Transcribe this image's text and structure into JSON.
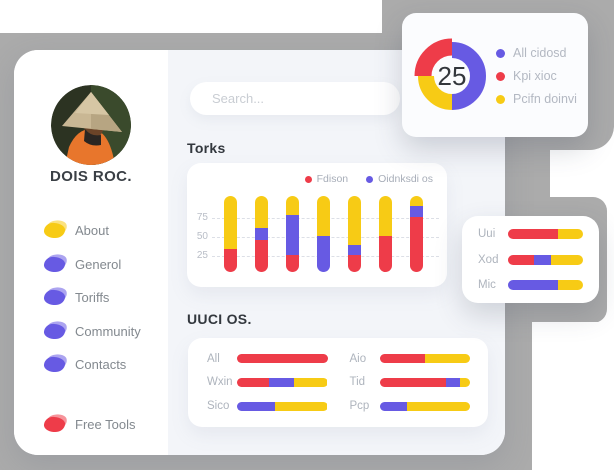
{
  "colors": {
    "red": "#ee3c49",
    "yellow": "#f7cb15",
    "purple": "#675ae3",
    "gray_bg": "#ababab",
    "content_bg": "#f3f5f9"
  },
  "profile": {
    "name": "DOIS ROC."
  },
  "search": {
    "placeholder": "Search..."
  },
  "sidebar": {
    "menu": [
      {
        "label": "About",
        "color": "#f7cb15"
      },
      {
        "label": "Generol",
        "color": "#675ae3"
      },
      {
        "label": "Toriffs",
        "color": "#675ae3"
      },
      {
        "label": "Community",
        "color": "#675ae3"
      },
      {
        "label": "Contacts",
        "color": "#675ae3"
      }
    ],
    "tools_item": {
      "label": "Free Tools",
      "color": "#ee3c49"
    }
  },
  "donut_card": {
    "center_value": "25",
    "type": "donut",
    "segments": [
      {
        "label": "All cidosd",
        "color": "#675ae3",
        "percent": 50,
        "exploded": false
      },
      {
        "label": "Pcifn doinvi",
        "color": "#f7cb15",
        "percent": 25,
        "exploded": false
      },
      {
        "label": "Kpi xioc",
        "color": "#ee3c49",
        "percent": 25,
        "exploded": true
      }
    ],
    "legend": [
      {
        "label": "All cidosd",
        "color": "#675ae3"
      },
      {
        "label": "Kpi xioc",
        "color": "#ee3c49"
      },
      {
        "label": "Pcifn doinvi",
        "color": "#f7cb15"
      }
    ]
  },
  "torks": {
    "title": "Torks",
    "type": "stacked-bar",
    "legend": [
      {
        "label": "Fdison",
        "color": "#ee3c49"
      },
      {
        "label": "Oidnksdi os",
        "color": "#675ae3"
      }
    ],
    "y_ticks": [
      75,
      50,
      25
    ],
    "ymax": 100,
    "bars": [
      {
        "red": 30,
        "purple": 0
      },
      {
        "red": 42,
        "purple": 16
      },
      {
        "red": 22,
        "purple": 53
      },
      {
        "red": 0,
        "purple": 48
      },
      {
        "red": 22,
        "purple": 14
      },
      {
        "red": 48,
        "purple": 0
      },
      {
        "red": 72,
        "purple": 15
      }
    ]
  },
  "uuci": {
    "title": "UUCI OS.",
    "type": "horizontal-stacked-bar",
    "rows": [
      {
        "label": "All",
        "segments": [
          {
            "color": "red",
            "pct": 100
          }
        ]
      },
      {
        "label": "Wxin",
        "segments": [
          {
            "color": "red",
            "pct": 35
          },
          {
            "color": "purple",
            "pct": 28
          },
          {
            "color": "yellow",
            "pct": 37
          }
        ]
      },
      {
        "label": "Sico",
        "segments": [
          {
            "color": "purple",
            "pct": 42
          },
          {
            "color": "yellow",
            "pct": 58
          }
        ]
      },
      {
        "label": "Aio",
        "segments": [
          {
            "color": "red",
            "pct": 50
          },
          {
            "color": "yellow",
            "pct": 50
          }
        ]
      },
      {
        "label": "Tid",
        "segments": [
          {
            "color": "red",
            "pct": 74
          },
          {
            "color": "purple",
            "pct": 15
          },
          {
            "color": "yellow",
            "pct": 11
          }
        ]
      },
      {
        "label": "Pcp",
        "segments": [
          {
            "color": "purple",
            "pct": 30
          },
          {
            "color": "yellow",
            "pct": 70
          }
        ]
      }
    ]
  },
  "side_card": {
    "type": "horizontal-stacked-bar",
    "rows": [
      {
        "label": "Uui",
        "segments": [
          {
            "color": "red",
            "pct": 66
          },
          {
            "color": "yellow",
            "pct": 34
          }
        ]
      },
      {
        "label": "Xod",
        "segments": [
          {
            "color": "red",
            "pct": 35
          },
          {
            "color": "purple",
            "pct": 22
          },
          {
            "color": "yellow",
            "pct": 43
          }
        ]
      },
      {
        "label": "Mic",
        "segments": [
          {
            "color": "purple",
            "pct": 66
          },
          {
            "color": "yellow",
            "pct": 34
          }
        ]
      }
    ]
  }
}
